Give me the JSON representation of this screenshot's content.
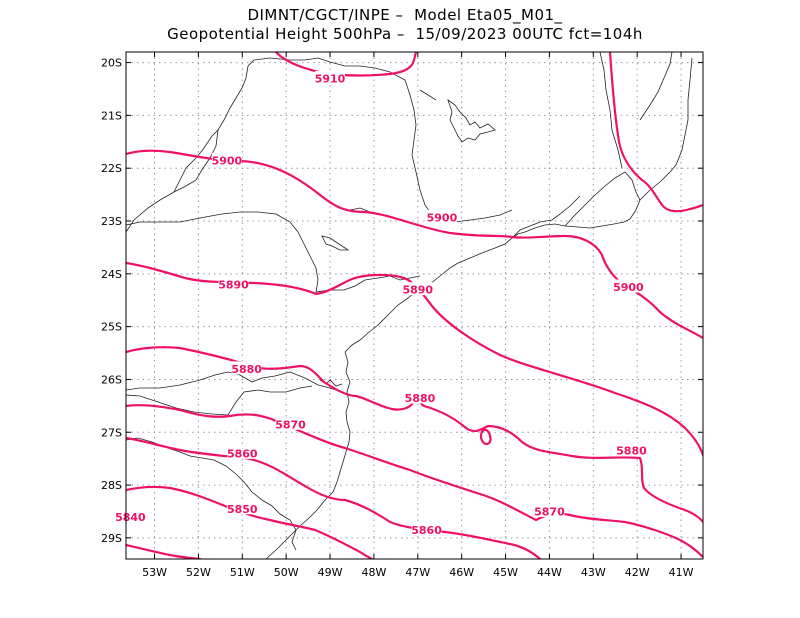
{
  "header": {
    "line1": "DIMNT/CGCT/INPE –  Model Eta05_M01_",
    "line2": "Geopotential Height 500hPa –  15/09/2023 00UTC fct=104h"
  },
  "colors": {
    "contour": "#ee1166",
    "coast": "#222222",
    "grid": "#999999"
  },
  "map": {
    "lon_range": [
      -53.65,
      -40.5
    ],
    "lat_range": [
      -29.4,
      -19.8
    ],
    "lon_ticks": [
      {
        "value": -53,
        "label": "53W"
      },
      {
        "value": -52,
        "label": "52W"
      },
      {
        "value": -51,
        "label": "51W"
      },
      {
        "value": -50,
        "label": "50W"
      },
      {
        "value": -49,
        "label": "49W"
      },
      {
        "value": -48,
        "label": "48W"
      },
      {
        "value": -47,
        "label": "47W"
      },
      {
        "value": -46,
        "label": "46W"
      },
      {
        "value": -45,
        "label": "45W"
      },
      {
        "value": -44,
        "label": "44W"
      },
      {
        "value": -43,
        "label": "43W"
      },
      {
        "value": -42,
        "label": "42W"
      },
      {
        "value": -41,
        "label": "41W"
      }
    ],
    "lat_ticks": [
      {
        "value": -20,
        "label": "20S"
      },
      {
        "value": -21,
        "label": "21S"
      },
      {
        "value": -22,
        "label": "22S"
      },
      {
        "value": -23,
        "label": "23S"
      },
      {
        "value": -24,
        "label": "24S"
      },
      {
        "value": -25,
        "label": "25S"
      },
      {
        "value": -26,
        "label": "26S"
      },
      {
        "value": -27,
        "label": "27S"
      },
      {
        "value": -28,
        "label": "28S"
      },
      {
        "value": -29,
        "label": "29S"
      }
    ],
    "contour_labels": [
      {
        "text": "5910",
        "lon": -49.0,
        "lat": -20.3
      },
      {
        "text": "5900",
        "lon": -51.35,
        "lat": -21.85
      },
      {
        "text": "5900",
        "lon": -46.45,
        "lat": -22.93
      },
      {
        "text": "5900",
        "lon": -42.2,
        "lat": -24.25
      },
      {
        "text": "5890",
        "lon": -51.2,
        "lat": -24.2
      },
      {
        "text": "5890",
        "lon": -47.0,
        "lat": -24.3
      },
      {
        "text": "5880",
        "lon": -50.9,
        "lat": -25.8
      },
      {
        "text": "5880",
        "lon": -46.95,
        "lat": -26.35
      },
      {
        "text": "5880",
        "lon": -42.13,
        "lat": -27.35
      },
      {
        "text": "5870",
        "lon": -49.9,
        "lat": -26.85
      },
      {
        "text": "5870",
        "lon": -44.0,
        "lat": -28.5
      },
      {
        "text": "5860",
        "lon": -51.0,
        "lat": -27.4
      },
      {
        "text": "5860",
        "lon": -46.8,
        "lat": -28.85
      },
      {
        "text": "5850",
        "lon": -51.0,
        "lat": -28.45
      },
      {
        "text": "5840",
        "lon": -53.55,
        "lat": -28.6
      }
    ]
  }
}
